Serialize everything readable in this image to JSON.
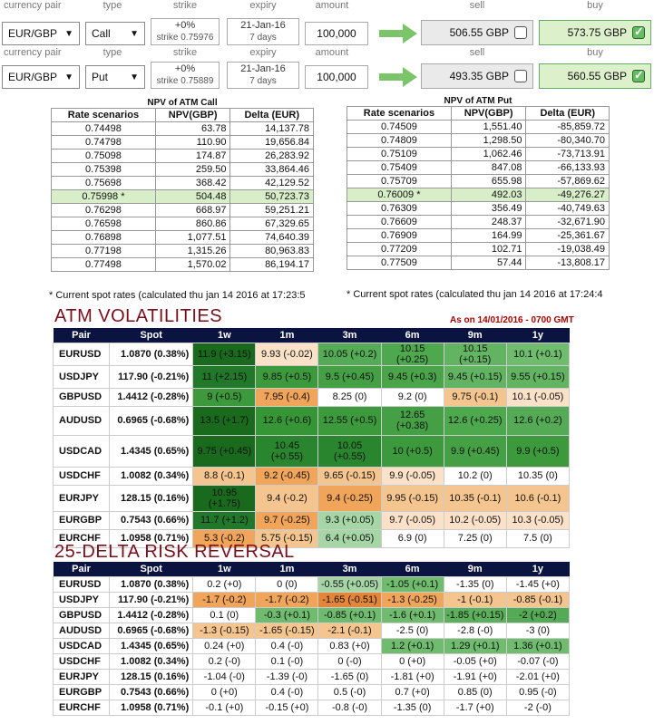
{
  "headers": [
    "currency pair",
    "type",
    "strike",
    "expiry",
    "amount",
    "sell",
    "buy"
  ],
  "rows": [
    {
      "pair": "EUR/GBP",
      "type": "Call",
      "strike": "+0%",
      "strike_sub": "strike 0.75976",
      "expiry": "21-Jan-16",
      "expiry_sub": "7 days",
      "amount": "100,000",
      "sell": "506.55 GBP",
      "buy": "573.75 GBP"
    },
    {
      "pair": "EUR/GBP",
      "type": "Put",
      "strike": "+0%",
      "strike_sub": "strike 0.75889",
      "expiry": "21-Jan-16",
      "expiry_sub": "7 days",
      "amount": "100,000",
      "sell": "493.35 GBP",
      "buy": "560.55 GBP"
    }
  ],
  "npv_call": {
    "title": "NPV of ATM Call",
    "cols": [
      "Rate scenarios",
      "NPV(GBP)",
      "Delta (EUR)"
    ],
    "rows": [
      [
        "0.74498",
        "63.78",
        "14,137.78"
      ],
      [
        "0.74798",
        "110.90",
        "19,656.84"
      ],
      [
        "0.75098",
        "174.87",
        "26,283.92"
      ],
      [
        "0.75398",
        "259.50",
        "33,864.46"
      ],
      [
        "0.75698",
        "368.42",
        "42,129.52"
      ],
      [
        "0.75998 *",
        "504.48",
        "50,723.73"
      ],
      [
        "0.76298",
        "668.97",
        "59,251.21"
      ],
      [
        "0.76598",
        "860.86",
        "67,329.65"
      ],
      [
        "0.76898",
        "1,077.51",
        "74,640.39"
      ],
      [
        "0.77198",
        "1,315.26",
        "80,963.83"
      ],
      [
        "0.77498",
        "1,570.02",
        "86,194.17"
      ]
    ],
    "note": "* Current spot rates (calculated thu jan 14 2016 at 17:23:5"
  },
  "npv_put": {
    "title": "NPV of ATM Put",
    "cols": [
      "Rate scenarios",
      "NPV(GBP)",
      "Delta (EUR)"
    ],
    "rows": [
      [
        "0.74509",
        "1,551.40",
        "-85,859.72"
      ],
      [
        "0.74809",
        "1,298.50",
        "-80,340.70"
      ],
      [
        "0.75109",
        "1,062.46",
        "-73,713.91"
      ],
      [
        "0.75409",
        "847.08",
        "-66,133.93"
      ],
      [
        "0.75709",
        "655.98",
        "-57,869.62"
      ],
      [
        "0.76009 *",
        "492.03",
        "-49,276.27"
      ],
      [
        "0.76309",
        "356.49",
        "-40,749.63"
      ],
      [
        "0.76609",
        "248.37",
        "-32,671.90"
      ],
      [
        "0.76909",
        "164.99",
        "-25,361.67"
      ],
      [
        "0.77209",
        "102.71",
        "-19,038.49"
      ],
      [
        "0.77509",
        "57.44",
        "-13,808.17"
      ]
    ],
    "note": "* Current spot rates (calculated thu jan 14 2016 at 17:24:4"
  },
  "atm": {
    "title": "ATM VOLATILITIES",
    "asof": "As on 14/01/2016 - 0700 GMT",
    "cols": [
      "Pair",
      "Spot",
      "1w",
      "1m",
      "3m",
      "6m",
      "9m",
      "1y"
    ],
    "rows": [
      {
        "pair": "EURUSD",
        "spot": "1.0870 (0.38%)",
        "cells": [
          [
            "11.9 (+3.15)",
            "#1a6a1e"
          ],
          [
            "9.93 (-0.02)",
            "#fbe1c8"
          ],
          [
            "10.05 (+0.2)",
            "#55aa55"
          ],
          [
            "10.15 (+0.25)",
            "#4ea84e"
          ],
          [
            "10.15 (+0.15)",
            "#62b462"
          ],
          [
            "10.1 (+0.1)",
            "#6fbc6f"
          ]
        ]
      },
      {
        "pair": "USDJPY",
        "spot": "117.90 (-0.21%)",
        "cells": [
          [
            "11 (+2.15)",
            "#22782a"
          ],
          [
            "9.85 (+0.5)",
            "#3c9a3c"
          ],
          [
            "9.5 (+0.45)",
            "#45a045"
          ],
          [
            "9.45 (+0.3)",
            "#4aa44a"
          ],
          [
            "9.45 (+0.15)",
            "#62b462"
          ],
          [
            "9.55 (+0.15)",
            "#62b462"
          ]
        ]
      },
      {
        "pair": "GBPUSD",
        "spot": "1.4412 (-0.28%)",
        "cells": [
          [
            "9 (+0.5)",
            "#3c9a3c"
          ],
          [
            "7.95 (-0.4)",
            "#f0a55a"
          ],
          [
            "8.25 (0)",
            "#ffffff"
          ],
          [
            "9.2 (0)",
            "#ffffff"
          ],
          [
            "9.75 (-0.1)",
            "#f5c58f"
          ],
          [
            "10.1 (-0.05)",
            "#fbe1c8"
          ]
        ]
      },
      {
        "pair": "AUDUSD",
        "spot": "0.6965 (-0.68%)",
        "cells": [
          [
            "13.5 (+1.7)",
            "#1a6a1e"
          ],
          [
            "12.6 (+0.6)",
            "#369636"
          ],
          [
            "12.55 (+0.5)",
            "#3c9a3c"
          ],
          [
            "12.65 (+0.38)",
            "#45a045"
          ],
          [
            "12.6 (+0.25)",
            "#4ea84e"
          ],
          [
            "12.6 (+0.2)",
            "#55aa55"
          ]
        ]
      },
      {
        "pair": "USDCAD",
        "spot": "1.4345 (0.65%)",
        "cells": [
          [
            "9.75 (+0.45)",
            "#1a6a1e"
          ],
          [
            "10.45 (+0.55)",
            "#2a862e"
          ],
          [
            "10.05 (+0.55)",
            "#2a862e"
          ],
          [
            "10 (+0.5)",
            "#3c9a3c"
          ],
          [
            "9.9 (+0.45)",
            "#45a045"
          ],
          [
            "9.9 (+0.5)",
            "#3c9a3c"
          ]
        ]
      },
      {
        "pair": "USDCHF",
        "spot": "1.0082 (0.34%)",
        "cells": [
          [
            "8.8 (-0.1)",
            "#f5c58f"
          ],
          [
            "9.2 (-0.45)",
            "#f0a55a"
          ],
          [
            "9.65 (-0.15)",
            "#f5c58f"
          ],
          [
            "9.9 (-0.05)",
            "#fbe1c8"
          ],
          [
            "10.2 (0)",
            "#ffffff"
          ],
          [
            "10.35 (0)",
            "#ffffff"
          ]
        ]
      },
      {
        "pair": "EURJPY",
        "spot": "128.15 (0.16%)",
        "cells": [
          [
            "10.95 (+1.75)",
            "#1a6a1e"
          ],
          [
            "9.4 (-0.2)",
            "#f5c58f"
          ],
          [
            "9.4 (-0.25)",
            "#f0a55a"
          ],
          [
            "9.95 (-0.15)",
            "#f5c58f"
          ],
          [
            "10.35 (-0.1)",
            "#f5c58f"
          ],
          [
            "10.6 (-0.1)",
            "#f5c58f"
          ]
        ]
      },
      {
        "pair": "EURGBP",
        "spot": "0.7543 (0.66%)",
        "cells": [
          [
            "11.7 (+1.2)",
            "#22782a"
          ],
          [
            "9.7 (-0.25)",
            "#f0a55a"
          ],
          [
            "9.3 (+0.05)",
            "#a6d6a6"
          ],
          [
            "9.7 (-0.05)",
            "#fbe1c8"
          ],
          [
            "10.2 (-0.05)",
            "#fbe1c8"
          ],
          [
            "10.3 (-0.05)",
            "#fbe1c8"
          ]
        ]
      },
      {
        "pair": "EURCHF",
        "spot": "1.0958 (0.71%)",
        "cells": [
          [
            "5.3 (-0.2)",
            "#f0a55a"
          ],
          [
            "5.75 (-0.15)",
            "#f5c58f"
          ],
          [
            "6.4 (+0.05)",
            "#a6d6a6"
          ],
          [
            "6.9 (0)",
            "#ffffff"
          ],
          [
            "7.25 (0)",
            "#ffffff"
          ],
          [
            "7.5 (0)",
            "#ffffff"
          ]
        ]
      }
    ]
  },
  "rr": {
    "title": "25-DELTA RISK REVERSAL",
    "cols": [
      "Pair",
      "Spot",
      "1w",
      "1m",
      "3m",
      "6m",
      "9m",
      "1y"
    ],
    "rows": [
      {
        "pair": "EURUSD",
        "spot": "1.0870 (0.38%)",
        "cells": [
          [
            "0.2 (+0)",
            "#ffffff"
          ],
          [
            "0 (0)",
            "#ffffff"
          ],
          [
            "-0.55 (+0.05)",
            "#a6d6a6"
          ],
          [
            "-1.05 (+0.1)",
            "#6fbc6f"
          ],
          [
            "-1.35 (0)",
            "#ffffff"
          ],
          [
            "-1.45 (+0)",
            "#ffffff"
          ]
        ]
      },
      {
        "pair": "USDJPY",
        "spot": "117.90 (-0.21%)",
        "cells": [
          [
            "-1.7 (-0.2)",
            "#f0a55a"
          ],
          [
            "-1.7 (-0.2)",
            "#f0a55a"
          ],
          [
            "-1.65 (-0.51)",
            "#e4863a"
          ],
          [
            "-1.3 (-0.25)",
            "#f0a55a"
          ],
          [
            "-1 (-0.1)",
            "#f5c58f"
          ],
          [
            "-0.85 (-0.1)",
            "#f5c58f"
          ]
        ]
      },
      {
        "pair": "GBPUSD",
        "spot": "1.4412 (-0.28%)",
        "cells": [
          [
            "0.1 (0)",
            "#ffffff"
          ],
          [
            "-0.3 (+0.1)",
            "#6fbc6f"
          ],
          [
            "-0.85 (+0.1)",
            "#6fbc6f"
          ],
          [
            "-1.6 (+0.1)",
            "#6fbc6f"
          ],
          [
            "-1.85 (+0.15)",
            "#5cb05c"
          ],
          [
            "-2 (+0.2)",
            "#55aa55"
          ]
        ]
      },
      {
        "pair": "AUDUSD",
        "spot": "0.6965 (-0.68%)",
        "cells": [
          [
            "-1.3 (-0.15)",
            "#f5c58f"
          ],
          [
            "-1.65 (-0.15)",
            "#f5c58f"
          ],
          [
            "-2.1 (-0.1)",
            "#f5c58f"
          ],
          [
            "-2.5 (0)",
            "#ffffff"
          ],
          [
            "-2.8 (-0)",
            "#ffffff"
          ],
          [
            "-3 (0)",
            "#ffffff"
          ]
        ]
      },
      {
        "pair": "USDCAD",
        "spot": "1.4345 (0.65%)",
        "cells": [
          [
            "0.24 (+0)",
            "#ffffff"
          ],
          [
            "0.4 (-0)",
            "#ffffff"
          ],
          [
            "0.83 (+0)",
            "#ffffff"
          ],
          [
            "1.2 (+0.1)",
            "#6fbc6f"
          ],
          [
            "1.29 (+0.1)",
            "#6fbc6f"
          ],
          [
            "1.36 (+0.1)",
            "#6fbc6f"
          ]
        ]
      },
      {
        "pair": "USDCHF",
        "spot": "1.0082 (0.34%)",
        "cells": [
          [
            "0.2 (-0)",
            "#ffffff"
          ],
          [
            "0.1 (-0)",
            "#ffffff"
          ],
          [
            "0 (-0)",
            "#ffffff"
          ],
          [
            "0 (+0)",
            "#ffffff"
          ],
          [
            "-0.05 (+0)",
            "#ffffff"
          ],
          [
            "-0.07 (-0)",
            "#ffffff"
          ]
        ]
      },
      {
        "pair": "EURJPY",
        "spot": "128.15 (0.16%)",
        "cells": [
          [
            "-1.04 (-0)",
            "#ffffff"
          ],
          [
            "-1.39 (-0)",
            "#ffffff"
          ],
          [
            "-1.65 (0)",
            "#ffffff"
          ],
          [
            "-1.81 (+0)",
            "#ffffff"
          ],
          [
            "-1.91 (+0)",
            "#ffffff"
          ],
          [
            "-2.01 (+0)",
            "#ffffff"
          ]
        ]
      },
      {
        "pair": "EURGBP",
        "spot": "0.7543 (0.66%)",
        "cells": [
          [
            "0 (+0)",
            "#ffffff"
          ],
          [
            "0.4 (-0)",
            "#ffffff"
          ],
          [
            "0.5 (-0)",
            "#ffffff"
          ],
          [
            "0.7 (+0)",
            "#ffffff"
          ],
          [
            "0.85 (0)",
            "#ffffff"
          ],
          [
            "0.95 (-0)",
            "#ffffff"
          ]
        ]
      },
      {
        "pair": "EURCHF",
        "spot": "1.0958 (0.71%)",
        "cells": [
          [
            "-0.1 (+0)",
            "#ffffff"
          ],
          [
            "-0.15 (+0)",
            "#ffffff"
          ],
          [
            "-0.8 (-0)",
            "#ffffff"
          ],
          [
            "-1.35 (0)",
            "#ffffff"
          ],
          [
            "-1.7 (+0)",
            "#ffffff"
          ],
          [
            "-2 (-0)",
            "#ffffff"
          ]
        ]
      }
    ]
  }
}
